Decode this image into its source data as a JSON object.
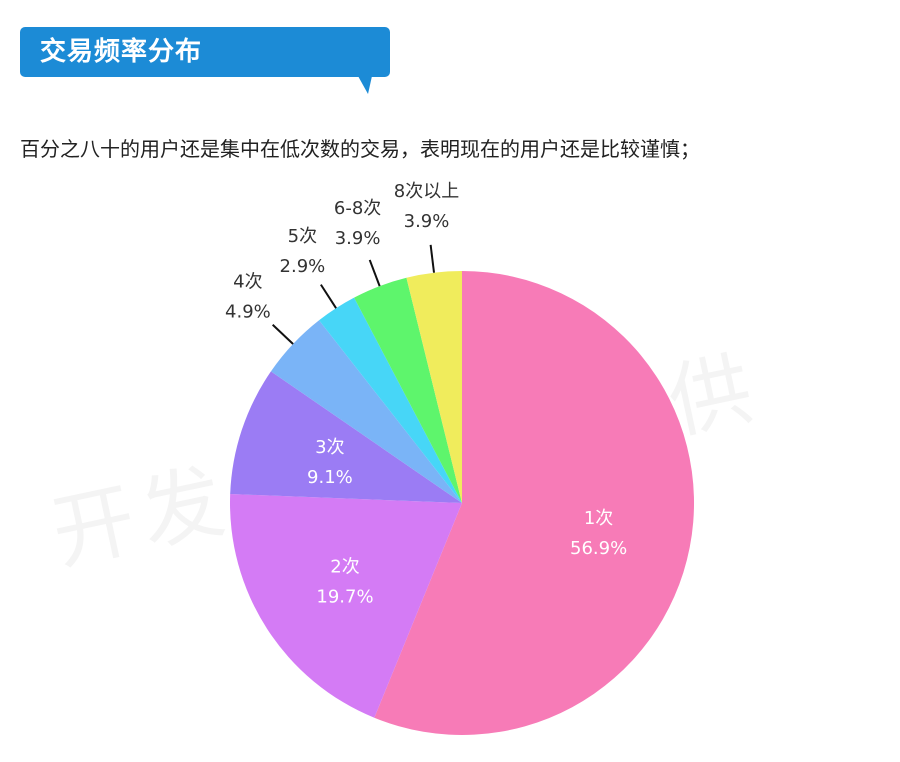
{
  "header": {
    "title": "交易频率分布",
    "subtitle": "百分之八十的用户还是集中在低次数的交易，表明现在的用户还是比较谨慎；"
  },
  "watermark": "开发者俱乐部提供",
  "colors": {
    "title_bg": "#1c8bd6",
    "leader_line": "#111111"
  },
  "chart_data": {
    "type": "pie",
    "title": "",
    "start_angle_deg": 0,
    "direction": "clockwise",
    "slices": [
      {
        "label": "1次",
        "value": 56.9,
        "display": "56.9%",
        "color": "#f77bb7"
      },
      {
        "label": "2次",
        "value": 19.7,
        "display": "19.7%",
        "color": "#d47bf5"
      },
      {
        "label": "3次",
        "value": 9.1,
        "display": "9.1%",
        "color": "#9b7cf4"
      },
      {
        "label": "4次",
        "value": 4.9,
        "display": "4.9%",
        "color": "#7ab4f7"
      },
      {
        "label": "5次",
        "value": 2.9,
        "display": "2.9%",
        "color": "#47d6f7"
      },
      {
        "label": "6-8次",
        "value": 3.9,
        "display": "3.9%",
        "color": "#5ef56c"
      },
      {
        "label": "8次以上",
        "value": 3.9,
        "display": "3.9%",
        "color": "#f0ec5c"
      }
    ]
  }
}
